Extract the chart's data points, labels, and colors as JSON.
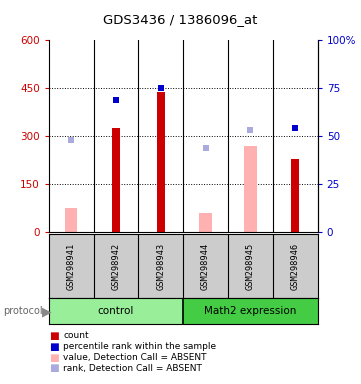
{
  "title": "GDS3436 / 1386096_at",
  "samples": [
    "GSM298941",
    "GSM298942",
    "GSM298943",
    "GSM298944",
    "GSM298945",
    "GSM298946"
  ],
  "red_bars": [
    0,
    325,
    440,
    0,
    0,
    230
  ],
  "pink_bars": [
    75,
    0,
    0,
    60,
    270,
    0
  ],
  "blue_squares_val": [
    null,
    415,
    450,
    null,
    null,
    325
  ],
  "light_blue_squares_val": [
    290,
    null,
    null,
    265,
    320,
    null
  ],
  "ylim_left": [
    0,
    600
  ],
  "yticks_left": [
    0,
    150,
    300,
    450,
    600
  ],
  "yticks_right": [
    0,
    25,
    50,
    75,
    100
  ],
  "ytick_labels_right": [
    "0",
    "25",
    "50",
    "75",
    "100%"
  ],
  "red_color": "#cc0000",
  "pink_color": "#ffb0b0",
  "blue_color": "#0000cc",
  "light_blue_color": "#aaaadd",
  "bg_color": "#ffffff",
  "axis_left_color": "#cc0000",
  "axis_right_color": "#0000cc",
  "sample_bg_color": "#cccccc",
  "group_color_control": "#99ee99",
  "group_color_math2": "#44cc44",
  "legend_labels": [
    "count",
    "percentile rank within the sample",
    "value, Detection Call = ABSENT",
    "rank, Detection Call = ABSENT"
  ],
  "legend_colors": [
    "#cc0000",
    "#0000cc",
    "#ffb0b0",
    "#aaaadd"
  ]
}
